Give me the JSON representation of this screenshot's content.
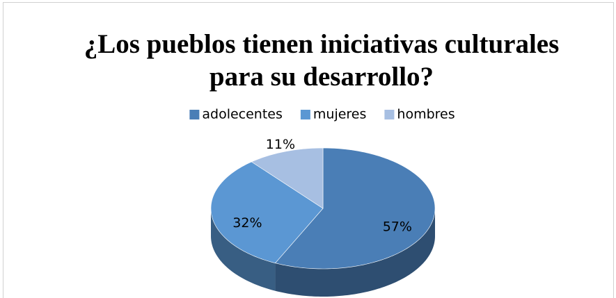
{
  "chart_data": {
    "type": "pie3d",
    "title": "¿Los pueblos tienen iniciativas culturales para su desarrollo?",
    "categories": [
      "adolecentes",
      "mujeres",
      "hombres"
    ],
    "values": [
      57,
      32,
      11
    ],
    "value_labels": [
      "57%",
      "32%",
      "11%"
    ],
    "colors": [
      "#4a7eb6",
      "#5b97d3",
      "#a7bfe2"
    ],
    "legend": "top"
  }
}
